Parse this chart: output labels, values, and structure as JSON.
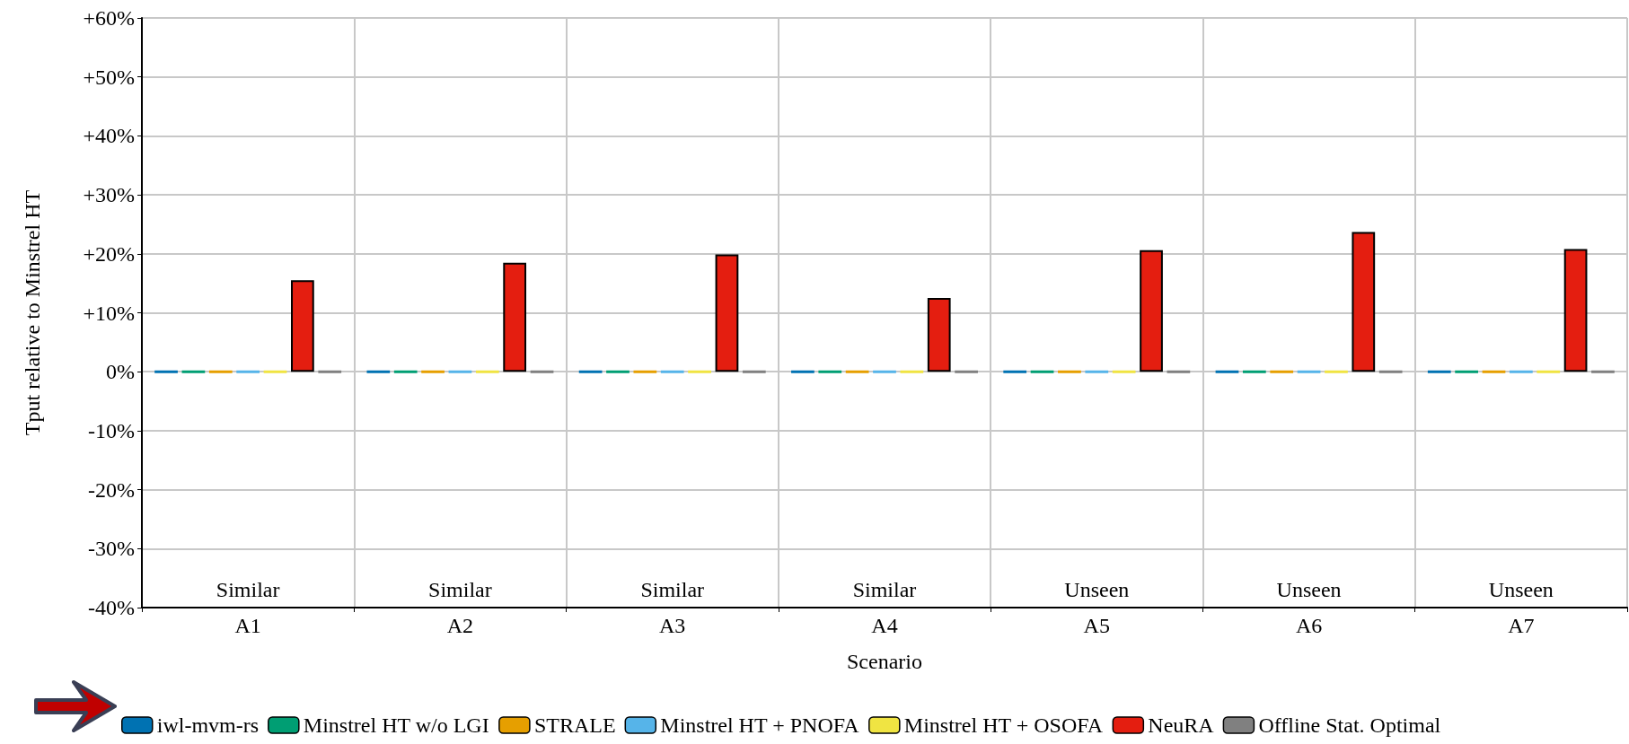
{
  "chart_data": {
    "type": "bar",
    "xlabel": "Scenario",
    "ylabel": "Tput relative to Minstrel HT",
    "categories": [
      "A1",
      "A2",
      "A3",
      "A4",
      "A5",
      "A6",
      "A7"
    ],
    "series": [
      {
        "name": "iwl-mvm-rs",
        "color": "#0072b2",
        "values": [
          0,
          0,
          0,
          0,
          0,
          0,
          0
        ]
      },
      {
        "name": "Minstrel HT w/o LGI",
        "color": "#009e73",
        "values": [
          0,
          0,
          0,
          0,
          0,
          0,
          0
        ]
      },
      {
        "name": "STRALE",
        "color": "#e69f00",
        "values": [
          0,
          0,
          0,
          0,
          0,
          0,
          0
        ]
      },
      {
        "name": "Minstrel HT + PNOFA",
        "color": "#56b4e9",
        "values": [
          0,
          0,
          0,
          0,
          0,
          0,
          0
        ]
      },
      {
        "name": "Minstrel HT + OSOFA",
        "color": "#f0e442",
        "values": [
          0,
          0,
          0,
          0,
          0,
          0,
          0
        ]
      },
      {
        "name": "NeuRA",
        "color": "#e41e10",
        "values": [
          15.5,
          18.5,
          19.9,
          12.5,
          20.6,
          23.7,
          20.8
        ]
      },
      {
        "name": "Offline Stat. Optimal",
        "color": "#808080",
        "values": [
          0,
          0,
          0,
          0,
          0,
          0,
          0
        ]
      }
    ],
    "ylim": [
      -40,
      60
    ],
    "yticks": [
      {
        "value": -40,
        "label": "-40%"
      },
      {
        "value": -30,
        "label": "-30%"
      },
      {
        "value": -20,
        "label": "-20%"
      },
      {
        "value": -10,
        "label": "-10%"
      },
      {
        "value": 0,
        "label": "0%"
      },
      {
        "value": 10,
        "label": "+10%"
      },
      {
        "value": 20,
        "label": "+20%"
      },
      {
        "value": 30,
        "label": "+30%"
      },
      {
        "value": 40,
        "label": "+40%"
      },
      {
        "value": 50,
        "label": "+50%"
      },
      {
        "value": 60,
        "label": "+60%"
      }
    ],
    "grid": true,
    "legend": "bottom",
    "annotations": [
      "Similar",
      "Similar",
      "Similar",
      "Similar",
      "Unseen",
      "Unseen",
      "Unseen"
    ]
  }
}
